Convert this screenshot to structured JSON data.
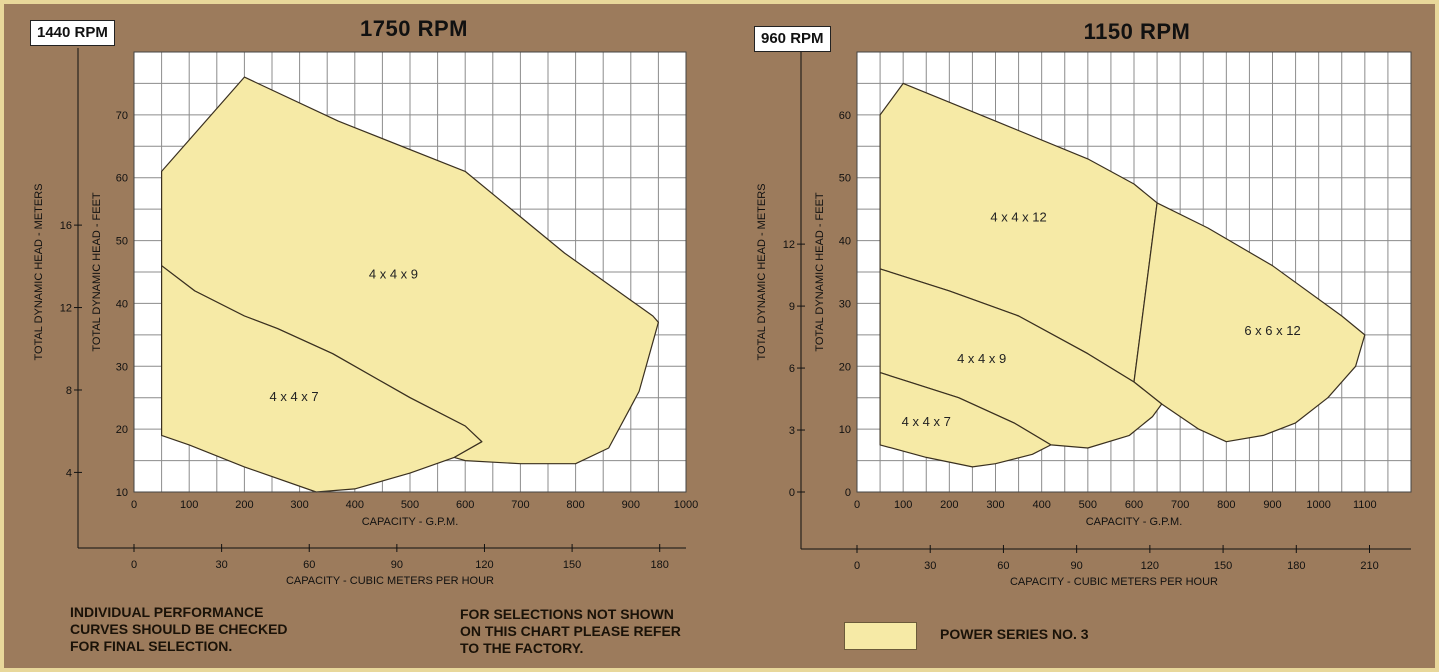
{
  "charts": [
    {
      "title": "1750 RPM",
      "alt_rpm": "1440 RPM",
      "xlabel": "CAPACITY - G.P.M.",
      "ylabel": "TOTAL DYNAMIC HEAD - FEET",
      "ylabel_m": "TOTAL DYNAMIC HEAD - METERS",
      "x2label": "CAPACITY - CUBIC METERS PER HOUR",
      "x_ticks": [
        "0",
        "100",
        "200",
        "300",
        "400",
        "500",
        "600",
        "700",
        "800",
        "900",
        "1000"
      ],
      "y_ticks": [
        "10",
        "20",
        "30",
        "40",
        "50",
        "60",
        "70"
      ],
      "ym_ticks": [
        "4",
        "8",
        "12",
        "16"
      ],
      "x2_ticks": [
        "0",
        "30",
        "60",
        "90",
        "120",
        "150",
        "180"
      ]
    },
    {
      "title": "1150 RPM",
      "alt_rpm": "960 RPM",
      "xlabel": "CAPACITY - G.P.M.",
      "ylabel": "TOTAL DYNAMIC HEAD - FEET",
      "ylabel_m": "TOTAL DYNAMIC HEAD - METERS",
      "x2label": "CAPACITY - CUBIC METERS PER HOUR",
      "x_ticks": [
        "0",
        "100",
        "200",
        "300",
        "400",
        "500",
        "600",
        "700",
        "800",
        "900",
        "1000",
        "1100"
      ],
      "y_ticks": [
        "0",
        "10",
        "20",
        "30",
        "40",
        "50",
        "60"
      ],
      "ym_ticks": [
        "0",
        "3",
        "6",
        "9",
        "12"
      ],
      "x2_ticks": [
        "0",
        "30",
        "60",
        "90",
        "120",
        "150",
        "180",
        "210"
      ]
    }
  ],
  "chart_data": [
    {
      "type": "area",
      "title": "1750 RPM",
      "xlabel": "CAPACITY - G.P.M.",
      "ylabel": "TOTAL DYNAMIC HEAD - FEET",
      "xlim": [
        0,
        1000
      ],
      "ylim": [
        10,
        80
      ],
      "grid": true,
      "series": [
        {
          "name": "4 x 4 x 9",
          "points": [
            [
              50,
              61
            ],
            [
              200,
              76
            ],
            [
              370,
              69
            ],
            [
              600,
              61
            ],
            [
              780,
              48
            ],
            [
              940,
              38
            ],
            [
              950,
              37
            ],
            [
              915,
              26
            ],
            [
              860,
              17
            ],
            [
              800,
              14.5
            ],
            [
              700,
              14.5
            ],
            [
              600,
              15
            ],
            [
              580,
              15.5
            ],
            [
              630,
              18
            ],
            [
              600,
              20.5
            ],
            [
              500,
              25
            ],
            [
              360,
              32
            ],
            [
              260,
              36
            ],
            [
              200,
              38
            ],
            [
              110,
              42
            ],
            [
              50,
              46
            ]
          ]
        },
        {
          "name": "4 x 4 x 7",
          "points": [
            [
              50,
              46
            ],
            [
              110,
              42
            ],
            [
              200,
              38
            ],
            [
              260,
              36
            ],
            [
              360,
              32
            ],
            [
              500,
              25
            ],
            [
              600,
              20.5
            ],
            [
              630,
              18
            ],
            [
              580,
              15.5
            ],
            [
              500,
              13
            ],
            [
              400,
              10.5
            ],
            [
              330,
              10
            ],
            [
              200,
              14
            ],
            [
              100,
              17.5
            ],
            [
              50,
              19
            ]
          ]
        }
      ]
    },
    {
      "type": "area",
      "title": "1150 RPM",
      "xlabel": "CAPACITY - G.P.M.",
      "ylabel": "TOTAL DYNAMIC HEAD - FEET",
      "xlim": [
        0,
        1200
      ],
      "ylim": [
        0,
        70
      ],
      "grid": true,
      "series": [
        {
          "name": "4 x 4 x 12",
          "points": [
            [
              50,
              60
            ],
            [
              100,
              65
            ],
            [
              300,
              59
            ],
            [
              500,
              53
            ],
            [
              600,
              49
            ],
            [
              650,
              46
            ],
            [
              600,
              17.5
            ],
            [
              500,
              22
            ],
            [
              350,
              28
            ],
            [
              200,
              32
            ],
            [
              50,
              35.5
            ]
          ]
        },
        {
          "name": "6 x 6 x 12",
          "points": [
            [
              650,
              46
            ],
            [
              760,
              42
            ],
            [
              900,
              36
            ],
            [
              1050,
              28
            ],
            [
              1100,
              25
            ],
            [
              1080,
              20
            ],
            [
              1020,
              15
            ],
            [
              950,
              11
            ],
            [
              880,
              9
            ],
            [
              800,
              8
            ],
            [
              740,
              10
            ],
            [
              660,
              14
            ],
            [
              600,
              17.5
            ]
          ]
        },
        {
          "name": "4 x 4 x 9",
          "points": [
            [
              50,
              35.5
            ],
            [
              200,
              32
            ],
            [
              350,
              28
            ],
            [
              500,
              22
            ],
            [
              600,
              17.5
            ],
            [
              660,
              14
            ],
            [
              640,
              12
            ],
            [
              590,
              9
            ],
            [
              500,
              7
            ],
            [
              420,
              7.5
            ],
            [
              340,
              11
            ],
            [
              220,
              15
            ],
            [
              50,
              19
            ]
          ]
        },
        {
          "name": "4 x 4 x 7",
          "points": [
            [
              50,
              19
            ],
            [
              220,
              15
            ],
            [
              340,
              11
            ],
            [
              420,
              7.5
            ],
            [
              380,
              6
            ],
            [
              300,
              4.5
            ],
            [
              250,
              4
            ],
            [
              150,
              5.5
            ],
            [
              50,
              7.5
            ]
          ]
        }
      ],
      "region_labels": [
        {
          "text": "4 x 4 x 12",
          "x": 350,
          "y": 43
        },
        {
          "text": "6 x 6 x 12",
          "x": 900,
          "y": 25
        },
        {
          "text": "4 x 4 x 9",
          "x": 270,
          "y": 20.5
        },
        {
          "text": "4 x 4 x 7",
          "x": 150,
          "y": 10.5
        }
      ]
    }
  ],
  "region_labels_left": [
    {
      "text": "4 x 4 x 9",
      "x": 470,
      "y": 44
    },
    {
      "text": "4 x 4 x 7",
      "x": 290,
      "y": 24.5
    }
  ],
  "notes": {
    "left": "INDIVIDUAL PERFORMANCE\nCURVES SHOULD BE CHECKED\nFOR FINAL SELECTION.",
    "middle": "FOR SELECTIONS NOT SHOWN\nON THIS CHART PLEASE REFER\nTO THE FACTORY."
  },
  "legend": {
    "label": "POWER SERIES NO. 3",
    "color": "#f6eaa6"
  },
  "colors": {
    "fill": "#f6eaa6",
    "stroke": "#3a3020",
    "grid": "#8c8c8c",
    "background": "#9c7b5c",
    "border": "#e8d79a"
  }
}
